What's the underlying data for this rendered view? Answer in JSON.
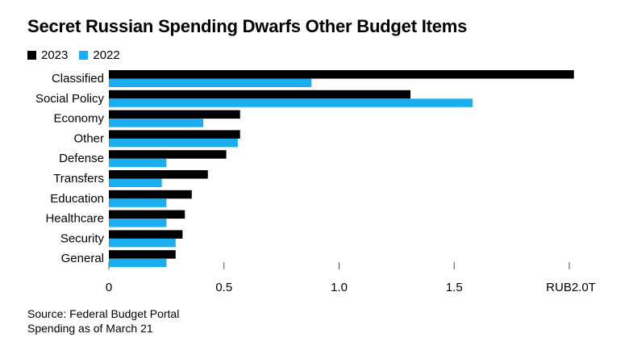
{
  "chart_data": {
    "type": "bar",
    "orientation": "horizontal",
    "title": "Secret Russian Spending Dwarfs Other Budget Items",
    "categories": [
      "Classified",
      "Social Policy",
      "Economy",
      "Other",
      "Defense",
      "Transfers",
      "Education",
      "Healthcare",
      "Security",
      "General"
    ],
    "series": [
      {
        "name": "2023",
        "color": "#000000",
        "values": [
          2.02,
          1.31,
          0.57,
          0.57,
          0.51,
          0.43,
          0.36,
          0.33,
          0.32,
          0.29
        ]
      },
      {
        "name": "2022",
        "color": "#1AADF0",
        "values": [
          0.88,
          1.58,
          0.41,
          0.56,
          0.25,
          0.23,
          0.25,
          0.25,
          0.29,
          0.25
        ]
      }
    ],
    "xlim": [
      0,
      2.0
    ],
    "xticks": [
      0,
      0.5,
      1.0,
      1.5,
      2.0
    ],
    "xtick_labels": [
      "0",
      "0.5",
      "1.0",
      "1.5",
      "RUB2.0T"
    ],
    "xlabel": "",
    "ylabel": "",
    "legend_position": "top-left"
  },
  "footer": {
    "source": "Source: Federal Budget Portal",
    "note": "Spending as of March 21"
  }
}
